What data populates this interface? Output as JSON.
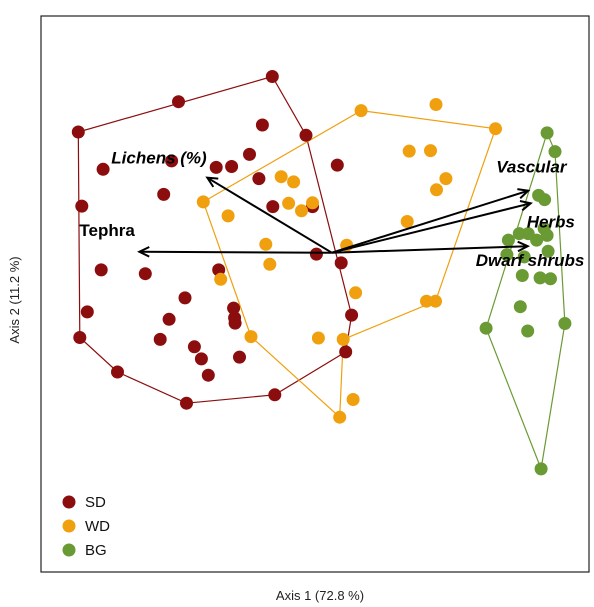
{
  "chart_data": {
    "type": "scatter",
    "xlabel": "Axis 1 (72.8 %)",
    "ylabel": "Axis 2 (11.2 %)",
    "xlim": [
      0,
      100
    ],
    "ylim": [
      0,
      100
    ],
    "grid": false,
    "legend_position": "bottom-left",
    "series": [
      {
        "name": "SD",
        "color": "#8b0d0d",
        "points": [
          [
            3.9,
            79.4
          ],
          [
            8.9,
            71.4
          ],
          [
            24.1,
            85.9
          ],
          [
            43.0,
            91.3
          ],
          [
            41.0,
            80.9
          ],
          [
            49.8,
            78.7
          ],
          [
            56.1,
            72.3
          ],
          [
            22.7,
            73.2
          ],
          [
            31.7,
            71.8
          ],
          [
            34.8,
            72.0
          ],
          [
            38.4,
            74.6
          ],
          [
            40.3,
            69.4
          ],
          [
            21.1,
            66.0
          ],
          [
            43.1,
            63.4
          ],
          [
            51.1,
            63.4
          ],
          [
            4.6,
            63.5
          ],
          [
            8.5,
            49.8
          ],
          [
            17.4,
            49.0
          ],
          [
            32.2,
            49.8
          ],
          [
            51.9,
            53.2
          ],
          [
            56.9,
            51.3
          ],
          [
            5.7,
            40.8
          ],
          [
            22.2,
            39.2
          ],
          [
            35.4,
            39.5
          ],
          [
            25.4,
            43.8
          ],
          [
            35.2,
            41.6
          ],
          [
            35.5,
            38.4
          ],
          [
            20.4,
            34.9
          ],
          [
            27.3,
            33.3
          ],
          [
            4.2,
            35.3
          ],
          [
            36.4,
            31.1
          ],
          [
            28.7,
            30.7
          ],
          [
            30.1,
            27.2
          ],
          [
            11.8,
            27.9
          ],
          [
            25.7,
            21.2
          ],
          [
            43.5,
            23.0
          ],
          [
            59.0,
            40.1
          ],
          [
            57.8,
            32.2
          ]
        ]
      },
      {
        "name": "WD",
        "color": "#f0a00e",
        "points": [
          [
            60.9,
            84.0
          ],
          [
            76.0,
            85.3
          ],
          [
            88.0,
            80.1
          ],
          [
            70.6,
            75.3
          ],
          [
            74.9,
            75.4
          ],
          [
            44.8,
            69.8
          ],
          [
            47.3,
            68.7
          ],
          [
            76.1,
            67.0
          ],
          [
            78.0,
            69.4
          ],
          [
            70.2,
            60.2
          ],
          [
            29.1,
            64.4
          ],
          [
            46.3,
            64.1
          ],
          [
            48.9,
            62.5
          ],
          [
            51.1,
            64.2
          ],
          [
            34.1,
            61.4
          ],
          [
            58.0,
            55.1
          ],
          [
            41.7,
            55.3
          ],
          [
            42.5,
            51.0
          ],
          [
            32.6,
            47.8
          ],
          [
            59.8,
            44.9
          ],
          [
            74.1,
            43.1
          ],
          [
            75.9,
            43.1
          ],
          [
            38.7,
            35.5
          ],
          [
            52.3,
            35.2
          ],
          [
            57.3,
            34.9
          ],
          [
            59.3,
            22.0
          ],
          [
            56.6,
            18.2
          ]
        ]
      },
      {
        "name": "BG",
        "color": "#6a9a34",
        "points": [
          [
            98.4,
            79.2
          ],
          [
            100.0,
            75.2
          ],
          [
            96.7,
            65.8
          ],
          [
            97.9,
            64.9
          ],
          [
            97.8,
            58.7
          ],
          [
            98.4,
            57.2
          ],
          [
            90.6,
            56.2
          ],
          [
            92.8,
            57.6
          ],
          [
            94.6,
            57.6
          ],
          [
            96.3,
            56.2
          ],
          [
            98.6,
            53.8
          ],
          [
            93.8,
            52.6
          ],
          [
            90.3,
            53.1
          ],
          [
            93.4,
            48.6
          ],
          [
            97.0,
            48.1
          ],
          [
            99.1,
            47.9
          ],
          [
            93.0,
            41.9
          ],
          [
            86.1,
            37.3
          ],
          [
            94.5,
            36.7
          ],
          [
            102.0,
            38.3
          ],
          [
            97.2,
            7.1
          ]
        ]
      }
    ],
    "hulls": [
      {
        "group": "SD",
        "color": "#8b0d0d",
        "points": [
          [
            3.9,
            79.4
          ],
          [
            43.0,
            91.3
          ],
          [
            49.8,
            78.7
          ],
          [
            59.0,
            40.1
          ],
          [
            57.8,
            32.2
          ],
          [
            43.5,
            23.0
          ],
          [
            25.7,
            21.2
          ],
          [
            11.8,
            27.9
          ],
          [
            4.2,
            35.3
          ]
        ]
      },
      {
        "group": "WD",
        "color": "#f0a00e",
        "points": [
          [
            29.1,
            64.4
          ],
          [
            60.9,
            84.0
          ],
          [
            88.0,
            80.1
          ],
          [
            75.9,
            43.1
          ],
          [
            57.3,
            34.9
          ],
          [
            56.6,
            18.2
          ],
          [
            38.7,
            35.5
          ]
        ]
      },
      {
        "group": "BG",
        "color": "#6a9a34",
        "points": [
          [
            98.4,
            79.2
          ],
          [
            100.0,
            75.2
          ],
          [
            102.0,
            38.3
          ],
          [
            97.2,
            7.1
          ],
          [
            86.1,
            37.3
          ]
        ]
      }
    ],
    "vectors": [
      {
        "label": "Lichens (%)",
        "x": 29.9,
        "y": 69.6
      },
      {
        "label": "Tephra",
        "x": 16.2,
        "y": 53.7
      },
      {
        "label": "Vascular",
        "x": 94.6,
        "y": 66.8
      },
      {
        "label": "Herbs",
        "x": 95.1,
        "y": 64.1
      },
      {
        "label": "Dwarf shrubs",
        "x": 94.5,
        "y": 54.9
      }
    ],
    "vector_origin": {
      "x": 55.0,
      "y": 53.5
    }
  }
}
